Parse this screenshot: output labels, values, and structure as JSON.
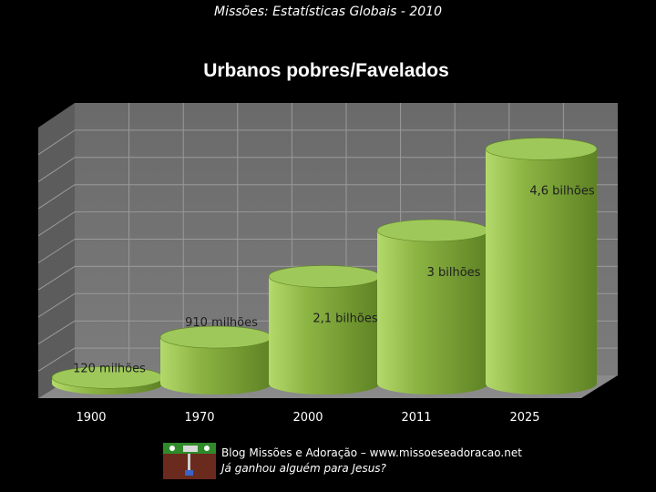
{
  "header": {
    "text": "Missões: Estatísticas Globais - 2010"
  },
  "chart_data": {
    "type": "bar",
    "title": "Urbanos pobres/Favelados",
    "categories": [
      "1900",
      "1970",
      "2000",
      "2011",
      "2025"
    ],
    "values": [
      0.12,
      0.91,
      2.1,
      3,
      4.6
    ],
    "data_labels": [
      "120 milhões",
      "910 milhões",
      "2,1 bilhões",
      "3 bilhões",
      "4,6 bilhões"
    ],
    "unit": "bilhões",
    "ylim": [
      0,
      5
    ],
    "grid": true,
    "legend": "none",
    "bar_style": "3d-cylinder",
    "colors": {
      "bar_body": "#8cb443",
      "bar_light": "#b3d96a",
      "bar_dark": "#5e8224",
      "bar_top": "#9ec95a",
      "plot_bg": "#737373",
      "grid": "#9a9a9a",
      "floor": "#8a8a8a"
    }
  },
  "footer": {
    "line1": "Blog Missões e Adoração – www.missoeseadoracao.net",
    "line2": "Já ganhou alguém para Jesus?"
  }
}
